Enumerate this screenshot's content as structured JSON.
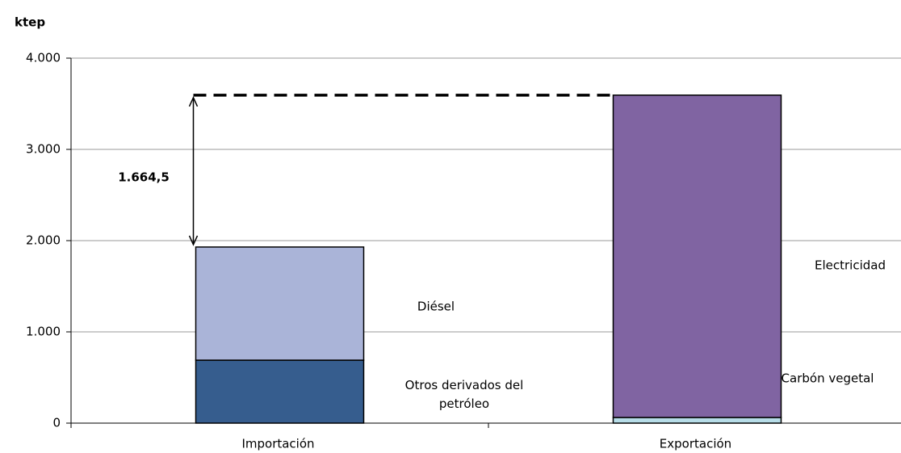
{
  "chart_data": {
    "type": "stacked_bar",
    "y_label": "ktep",
    "categories": [
      "Importación",
      "Exportación"
    ],
    "series": [
      {
        "name": "Otros derivados del petróleo",
        "color": "#365d8e",
        "values": [
          690,
          null
        ]
      },
      {
        "name": "Diésel",
        "color": "#aab4d8",
        "values": [
          1240,
          null
        ]
      },
      {
        "name": "Carbón vegetal",
        "color": "#b7dde8",
        "values": [
          null,
          62
        ]
      },
      {
        "name": "Electricidad",
        "color": "#8064a2",
        "values": [
          null,
          3532.5
        ]
      }
    ],
    "annotation": "1.664,5",
    "ylim": [
      0,
      4000
    ],
    "yticks": [
      0,
      {
        "value": 1000,
        "label": "1.000"
      },
      {
        "value": 2000,
        "label": "2.000"
      },
      {
        "value": 3000,
        "label": "3.000"
      },
      {
        "value": 4000,
        "label": "4.000"
      }
    ],
    "grid": true
  }
}
